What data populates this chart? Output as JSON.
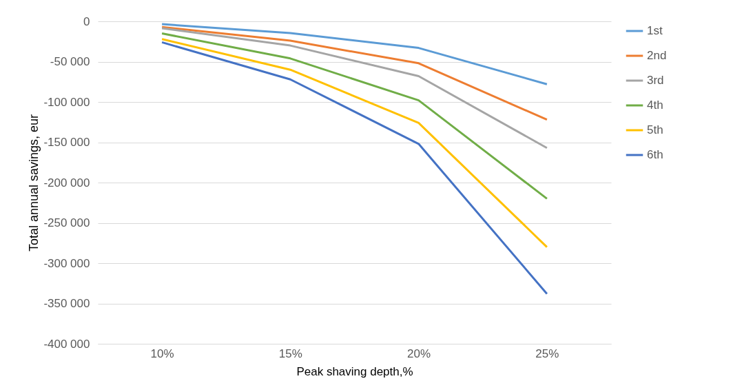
{
  "chart_data": {
    "type": "line",
    "xlabel": "Peak shaving depth,%",
    "ylabel": "Total annual savings, eur",
    "categories": [
      "10%",
      "15%",
      "20%",
      "25%"
    ],
    "series": [
      {
        "name": "1st",
        "color": "#5b9bd5",
        "values": [
          -3500,
          -14500,
          -33000,
          -78000
        ]
      },
      {
        "name": "2nd",
        "color": "#ed7d31",
        "values": [
          -7000,
          -24000,
          -52000,
          -122000
        ]
      },
      {
        "name": "3rd",
        "color": "#a5a5a5",
        "values": [
          -8500,
          -30000,
          -68000,
          -157000
        ]
      },
      {
        "name": "4th",
        "color": "#70ad47",
        "values": [
          -15000,
          -46000,
          -98000,
          -220000
        ]
      },
      {
        "name": "5th",
        "color": "#ffc000",
        "values": [
          -22000,
          -60000,
          -126000,
          -280000
        ]
      },
      {
        "name": "6th",
        "color": "#4472c4",
        "values": [
          -26000,
          -72000,
          -152000,
          -338000
        ]
      }
    ],
    "ylim": [
      -400000,
      0
    ],
    "yticks": [
      {
        "value": -400000,
        "label": "-400 000"
      },
      {
        "value": -350000,
        "label": "-350 000"
      },
      {
        "value": -300000,
        "label": "-300 000"
      },
      {
        "value": -250000,
        "label": "-250 000"
      },
      {
        "value": -200000,
        "label": "-200 000"
      },
      {
        "value": -150000,
        "label": "-150 000"
      },
      {
        "value": -100000,
        "label": "-100 000"
      },
      {
        "value": -50000,
        "label": "-50 000"
      },
      0
    ],
    "grid": "y",
    "legend": "right",
    "marker": "none",
    "line_style": "solid"
  }
}
